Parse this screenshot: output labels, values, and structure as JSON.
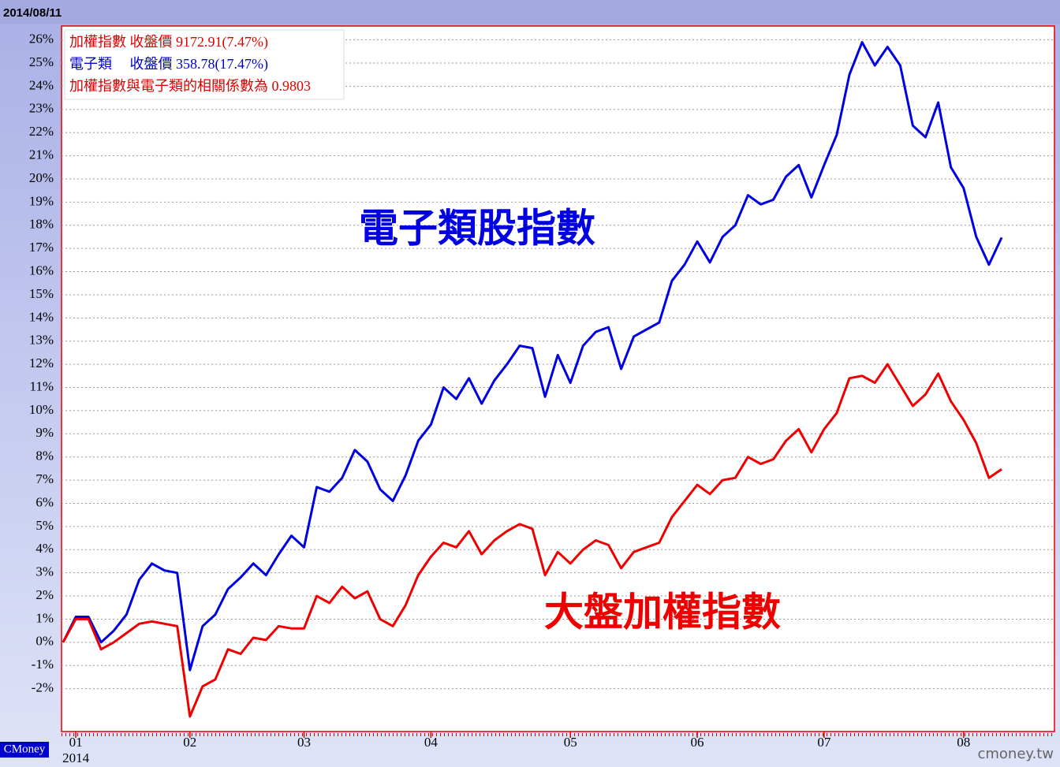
{
  "chart_data": {
    "type": "line",
    "date": "2014/08/11",
    "year_label": "2014",
    "brand_left": "CMoney",
    "brand_right": "cmoney.tw",
    "info_box": [
      {
        "text": "加權指數 收盤價 9172.91(7.47%)",
        "color": "#e00000"
      },
      {
        "text": "電子類　 收盤價 358.78(17.47%)",
        "color": "#0000cc"
      },
      {
        "text": "加權指數與電子類的相關係數為 0.9803",
        "color": "#e00000"
      }
    ],
    "categories": [
      null,
      "01",
      null,
      null,
      null,
      null,
      null,
      null,
      null,
      null,
      "02",
      null,
      null,
      null,
      null,
      null,
      null,
      null,
      null,
      "03",
      null,
      null,
      null,
      null,
      null,
      null,
      null,
      null,
      null,
      "04",
      null,
      null,
      null,
      null,
      null,
      null,
      null,
      null,
      null,
      null,
      "05",
      null,
      null,
      null,
      null,
      null,
      null,
      null,
      null,
      null,
      "06",
      null,
      null,
      null,
      null,
      null,
      null,
      null,
      null,
      null,
      "07",
      null,
      null,
      null,
      null,
      null,
      null,
      null,
      null,
      null,
      null,
      "08",
      null,
      null,
      null
    ],
    "series": [
      {
        "name": "電子類股指數",
        "color": "#0000e0",
        "values": [
          0,
          1.1,
          1.1,
          0,
          0.5,
          1.2,
          2.7,
          3.4,
          3.1,
          3.0,
          -1.2,
          0.7,
          1.2,
          2.3,
          2.8,
          3.4,
          2.9,
          3.8,
          4.6,
          4.1,
          6.7,
          6.5,
          7.1,
          8.3,
          7.8,
          6.6,
          6.1,
          7.2,
          8.7,
          9.4,
          11.0,
          10.5,
          11.4,
          10.3,
          11.3,
          12.0,
          12.8,
          12.7,
          10.6,
          12.4,
          11.2,
          12.8,
          13.4,
          13.6,
          11.8,
          13.2,
          13.5,
          13.8,
          15.6,
          16.3,
          17.3,
          16.4,
          17.5,
          18.0,
          19.3,
          18.9,
          19.1,
          20.1,
          20.6,
          19.2,
          20.6,
          21.9,
          24.5,
          25.9,
          24.9,
          25.7,
          24.9,
          22.3,
          21.8,
          23.3,
          20.5,
          19.6,
          17.5,
          16.3,
          17.47
        ]
      },
      {
        "name": "大盤加權指數",
        "color": "#ee0000",
        "values": [
          0,
          1.0,
          1.0,
          -0.3,
          0.0,
          0.4,
          0.8,
          0.9,
          0.8,
          0.7,
          -3.2,
          -1.9,
          -1.6,
          -0.3,
          -0.5,
          0.2,
          0.1,
          0.7,
          0.6,
          0.6,
          2.0,
          1.7,
          2.4,
          1.9,
          2.2,
          1.0,
          0.7,
          1.6,
          2.9,
          3.7,
          4.3,
          4.1,
          4.8,
          3.8,
          4.4,
          4.8,
          5.1,
          4.9,
          2.9,
          3.9,
          3.4,
          4.0,
          4.4,
          4.2,
          3.2,
          3.9,
          4.1,
          4.3,
          5.4,
          6.1,
          6.8,
          6.4,
          7.0,
          7.1,
          8.0,
          7.7,
          7.9,
          8.7,
          9.2,
          8.2,
          9.2,
          9.9,
          11.4,
          11.5,
          11.2,
          12.0,
          11.1,
          10.2,
          10.7,
          11.6,
          10.4,
          9.6,
          8.6,
          7.1,
          7.47
        ]
      }
    ],
    "ylim": [
      -3.85,
      26.6
    ],
    "yticks": [
      {
        "value": -2,
        "label": "-2%"
      },
      {
        "value": -1,
        "label": "-1%"
      },
      {
        "value": 0,
        "label": "0%"
      },
      {
        "value": 1,
        "label": "1%"
      },
      {
        "value": 2,
        "label": "2%"
      },
      {
        "value": 3,
        "label": "3%"
      },
      {
        "value": 4,
        "label": "4%"
      },
      {
        "value": 5,
        "label": "5%"
      },
      {
        "value": 6,
        "label": "6%"
      },
      {
        "value": 7,
        "label": "7%"
      },
      {
        "value": 8,
        "label": "8%"
      },
      {
        "value": 9,
        "label": "9%"
      },
      {
        "value": 10,
        "label": "10%"
      },
      {
        "value": 11,
        "label": "11%"
      },
      {
        "value": 12,
        "label": "12%"
      },
      {
        "value": 13,
        "label": "13%"
      },
      {
        "value": 14,
        "label": "14%"
      },
      {
        "value": 15,
        "label": "15%"
      },
      {
        "value": 16,
        "label": "16%"
      },
      {
        "value": 17,
        "label": "17%"
      },
      {
        "value": 18,
        "label": "18%"
      },
      {
        "value": 19,
        "label": "19%"
      },
      {
        "value": 20,
        "label": "20%"
      },
      {
        "value": 21,
        "label": "21%"
      },
      {
        "value": 22,
        "label": "22%"
      },
      {
        "value": 23,
        "label": "23%"
      },
      {
        "value": 24,
        "label": "24%"
      },
      {
        "value": 25,
        "label": "25%"
      },
      {
        "value": 26,
        "label": "26%"
      }
    ],
    "grid": true
  }
}
